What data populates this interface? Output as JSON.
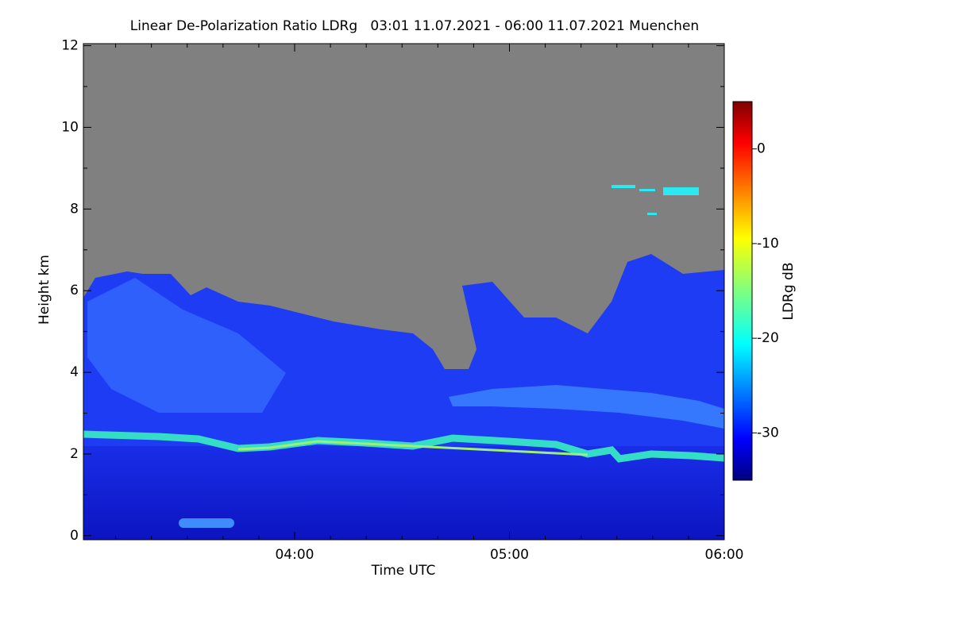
{
  "chart_data": {
    "type": "heatmap",
    "title": "Linear De-Polarization Ratio LDRg   03:01 11.07.2021 - 06:00 11.07.2021 Muenchen",
    "x_label": "Time UTC",
    "y_label": "Height km",
    "xlim": [
      181,
      360
    ],
    "xticks": [
      {
        "value": 240,
        "label": "04:00"
      },
      {
        "value": 300,
        "label": "05:00"
      },
      {
        "value": 360,
        "label": "06:00"
      }
    ],
    "xminorticks": [
      190,
      200,
      210,
      220,
      230,
      250,
      260,
      270,
      280,
      290,
      310,
      320,
      330,
      340,
      350
    ],
    "ylim": [
      -0.1,
      12.05
    ],
    "yticks": [
      0,
      2,
      4,
      6,
      8,
      10,
      12
    ],
    "yminorticks": [
      1,
      3,
      5,
      7,
      9,
      11
    ],
    "colorbar": {
      "label": "LDRg dB",
      "colormap": "jet",
      "lim": [
        -35,
        5
      ],
      "ticks": [
        0,
        -10,
        -20,
        -30
      ]
    }
  }
}
